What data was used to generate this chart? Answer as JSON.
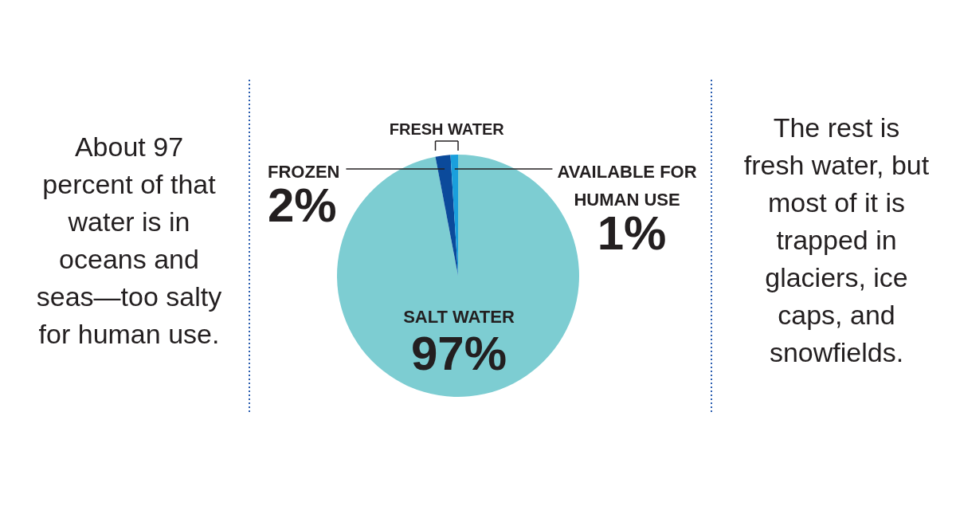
{
  "chart_data": {
    "type": "pie",
    "categories": [
      "SALT WATER",
      "FROZEN",
      "AVAILABLE FOR HUMAN USE"
    ],
    "values": [
      97,
      2,
      1
    ],
    "colors": [
      "#7dcdd2",
      "#0b4a9b",
      "#1a9fdc"
    ],
    "value_labels": [
      "97%",
      "2%",
      "1%"
    ],
    "annotations": [
      "About 97 percent of that water is in oceans and seas—too salty for human use.",
      "FRESH WATER",
      "The rest is fresh water, but most of it is trapped in glaciers, ice caps, and snowfields."
    ]
  }
}
